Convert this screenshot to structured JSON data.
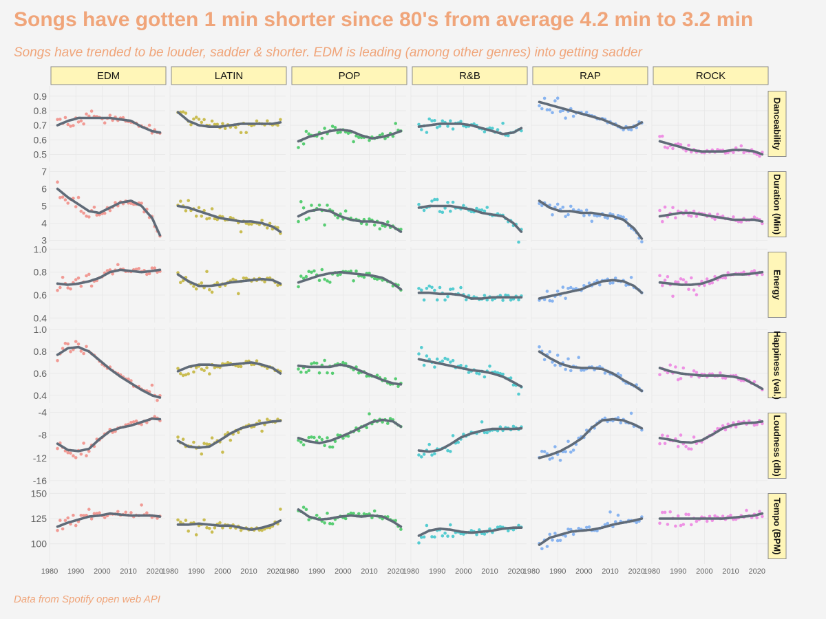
{
  "title": "Songs have gotten 1 min shorter since 80's from average 4.2 min to 3.2 min",
  "subtitle": "Songs have trended to be louder, sadder & shorter. EDM is leading (among other genres) into getting sadder",
  "caption": "Data from Spotify open web API",
  "colors": {
    "title": "#f0a57a",
    "strip_fill": "#fff6b8",
    "strip_border": "#8a8a8a",
    "panel_bg": "#f4f4f4",
    "grid": "#e7e7e7",
    "trend_line": "#606b78",
    "tick_text": "#5f5f5f",
    "genres": {
      "EDM": "#f08a82",
      "LATIN": "#c2b335",
      "POP": "#3cc65c",
      "R&B": "#38c4ca",
      "RAP": "#74a8ee",
      "ROCK": "#ec7fe0"
    }
  },
  "chart_data": {
    "type": "scatter",
    "facet_columns": [
      "EDM",
      "LATIN",
      "POP",
      "R&B",
      "RAP",
      "ROCK"
    ],
    "facet_rows": [
      {
        "label": "Danceability",
        "ticks": [
          0.5,
          0.6,
          0.7,
          0.8,
          0.9
        ],
        "tick_labels": [
          "0.5",
          "0.6",
          "0.7",
          "0.8",
          "0.9"
        ],
        "ylim": [
          0.45,
          0.97
        ]
      },
      {
        "label": "Duration (Min)",
        "ticks": [
          3,
          4,
          5,
          6,
          7
        ],
        "tick_labels": [
          "3",
          "4",
          "5",
          "6",
          "7"
        ],
        "ylim": [
          2.9,
          7.3
        ]
      },
      {
        "label": "Energy",
        "ticks": [
          0.4,
          0.6,
          0.8,
          1.0
        ],
        "tick_labels": [
          "0.4",
          "0.6",
          "0.8",
          "1.0"
        ],
        "ylim": [
          0.36,
          1.02
        ]
      },
      {
        "label": "Happiness (val.)",
        "ticks": [
          0.4,
          0.6,
          0.8,
          1.0
        ],
        "tick_labels": [
          "0.4",
          "0.6",
          "0.8",
          "1.0"
        ],
        "ylim": [
          0.33,
          1.02
        ]
      },
      {
        "label": "Loudness (db)",
        "ticks": [
          -16,
          -12,
          -8,
          -4
        ],
        "tick_labels": [
          "-16",
          "-12",
          "-8",
          "-4"
        ],
        "ylim": [
          -16.5,
          -3.2
        ]
      },
      {
        "label": "Tempo (BPM)",
        "ticks": [
          100,
          125,
          150
        ],
        "tick_labels": [
          "100",
          "125",
          "150"
        ],
        "ylim": [
          80,
          155
        ]
      }
    ],
    "x_ticks": [
      1980,
      1990,
      2000,
      2010,
      2020
    ],
    "x_tick_labels": [
      "1980",
      "1990",
      "2000",
      "2010",
      "2020"
    ],
    "xlim": [
      1980,
      2024
    ],
    "series_x_start": 1983,
    "series_x_end": 2022,
    "trend_knots_x": [
      1983,
      1987,
      1991,
      1995,
      1999,
      2003,
      2007,
      2011,
      2015,
      2019,
      2022
    ],
    "trends": {
      "Danceability": {
        "EDM": [
          0.7,
          0.73,
          0.75,
          0.75,
          0.75,
          0.75,
          0.74,
          0.73,
          0.69,
          0.66,
          0.65
        ],
        "LATIN": [
          0.79,
          0.73,
          0.7,
          0.69,
          0.69,
          0.7,
          0.71,
          0.71,
          0.71,
          0.71,
          0.72
        ],
        "POP": [
          0.59,
          0.62,
          0.64,
          0.66,
          0.67,
          0.66,
          0.63,
          0.61,
          0.62,
          0.64,
          0.66
        ],
        "R&B": [
          0.69,
          0.7,
          0.71,
          0.71,
          0.71,
          0.7,
          0.68,
          0.66,
          0.64,
          0.65,
          0.68
        ],
        "RAP": [
          0.86,
          0.84,
          0.82,
          0.8,
          0.78,
          0.76,
          0.74,
          0.71,
          0.68,
          0.69,
          0.72
        ],
        "ROCK": [
          0.59,
          0.57,
          0.55,
          0.53,
          0.52,
          0.52,
          0.52,
          0.53,
          0.53,
          0.52,
          0.5
        ]
      },
      "Duration (Min)": {
        "EDM": [
          6.0,
          5.5,
          5.1,
          4.7,
          4.6,
          4.9,
          5.2,
          5.3,
          5.0,
          4.3,
          3.3
        ],
        "LATIN": [
          5.0,
          4.9,
          4.7,
          4.5,
          4.3,
          4.2,
          4.1,
          4.1,
          4.0,
          3.8,
          3.5
        ],
        "POP": [
          4.4,
          4.7,
          4.8,
          4.7,
          4.4,
          4.2,
          4.1,
          4.1,
          4.0,
          3.8,
          3.5
        ],
        "R&B": [
          4.9,
          5.0,
          5.0,
          5.0,
          4.9,
          4.8,
          4.6,
          4.5,
          4.4,
          4.0,
          3.5
        ],
        "RAP": [
          5.3,
          4.9,
          4.7,
          4.7,
          4.6,
          4.6,
          4.5,
          4.4,
          4.2,
          3.7,
          3.1
        ],
        "ROCK": [
          4.4,
          4.5,
          4.6,
          4.6,
          4.5,
          4.4,
          4.3,
          4.2,
          4.2,
          4.2,
          4.1
        ]
      },
      "Energy": {
        "EDM": [
          0.7,
          0.69,
          0.7,
          0.72,
          0.75,
          0.8,
          0.82,
          0.81,
          0.8,
          0.81,
          0.82
        ],
        "LATIN": [
          0.78,
          0.72,
          0.68,
          0.68,
          0.69,
          0.71,
          0.72,
          0.73,
          0.74,
          0.73,
          0.7
        ],
        "POP": [
          0.71,
          0.74,
          0.77,
          0.79,
          0.8,
          0.79,
          0.78,
          0.77,
          0.75,
          0.7,
          0.65
        ],
        "R&B": [
          0.62,
          0.62,
          0.61,
          0.61,
          0.6,
          0.57,
          0.57,
          0.58,
          0.58,
          0.58,
          0.58
        ],
        "RAP": [
          0.57,
          0.59,
          0.61,
          0.63,
          0.65,
          0.69,
          0.72,
          0.73,
          0.72,
          0.68,
          0.62
        ],
        "ROCK": [
          0.71,
          0.7,
          0.69,
          0.69,
          0.7,
          0.73,
          0.77,
          0.78,
          0.78,
          0.79,
          0.8
        ]
      },
      "Happiness (val.)": {
        "EDM": [
          0.77,
          0.83,
          0.84,
          0.8,
          0.72,
          0.64,
          0.57,
          0.51,
          0.45,
          0.4,
          0.38
        ],
        "LATIN": [
          0.62,
          0.66,
          0.68,
          0.68,
          0.67,
          0.68,
          0.69,
          0.7,
          0.68,
          0.65,
          0.6
        ],
        "POP": [
          0.67,
          0.66,
          0.66,
          0.66,
          0.68,
          0.66,
          0.62,
          0.58,
          0.54,
          0.51,
          0.5
        ],
        "R&B": [
          0.73,
          0.71,
          0.69,
          0.67,
          0.65,
          0.63,
          0.62,
          0.6,
          0.57,
          0.52,
          0.48
        ],
        "RAP": [
          0.8,
          0.74,
          0.69,
          0.66,
          0.65,
          0.65,
          0.64,
          0.6,
          0.54,
          0.49,
          0.44
        ],
        "ROCK": [
          0.65,
          0.62,
          0.6,
          0.59,
          0.58,
          0.58,
          0.58,
          0.57,
          0.55,
          0.5,
          0.46
        ]
      },
      "Loudness (db)": {
        "EDM": [
          -9.5,
          -10.6,
          -10.8,
          -10.4,
          -8.7,
          -7.3,
          -6.7,
          -6.3,
          -5.7,
          -5.1,
          -5.2
        ],
        "LATIN": [
          -9.0,
          -10.0,
          -10.2,
          -10.0,
          -8.9,
          -7.7,
          -6.8,
          -6.3,
          -5.9,
          -5.6,
          -5.5
        ],
        "POP": [
          -8.5,
          -9.1,
          -9.4,
          -9.0,
          -8.3,
          -7.5,
          -6.6,
          -5.7,
          -5.3,
          -5.6,
          -6.5
        ],
        "R&B": [
          -10.7,
          -10.9,
          -10.6,
          -9.6,
          -8.4,
          -7.7,
          -7.2,
          -6.9,
          -6.9,
          -6.9,
          -6.8
        ],
        "RAP": [
          -12.0,
          -11.5,
          -10.8,
          -9.8,
          -8.6,
          -6.7,
          -5.4,
          -5.2,
          -5.4,
          -6.1,
          -6.8
        ],
        "ROCK": [
          -8.5,
          -8.8,
          -9.2,
          -9.3,
          -8.9,
          -7.9,
          -6.8,
          -6.2,
          -5.9,
          -5.8,
          -5.6
        ]
      },
      "Tempo (BPM)": {
        "EDM": [
          117,
          121,
          124,
          127,
          128,
          130,
          129,
          128,
          128,
          128,
          127
        ],
        "LATIN": [
          119,
          119,
          120,
          119,
          118,
          118,
          116,
          114,
          116,
          119,
          123
        ],
        "POP": [
          134,
          127,
          124,
          125,
          127,
          128,
          127,
          128,
          127,
          122,
          117
        ],
        "R&B": [
          108,
          113,
          115,
          114,
          112,
          111,
          112,
          113,
          115,
          116,
          116
        ],
        "RAP": [
          99,
          106,
          109,
          112,
          113,
          114,
          116,
          119,
          121,
          123,
          125
        ],
        "ROCK": [
          125,
          125,
          125,
          125,
          125,
          125,
          125,
          126,
          127,
          128,
          130
        ]
      }
    }
  }
}
